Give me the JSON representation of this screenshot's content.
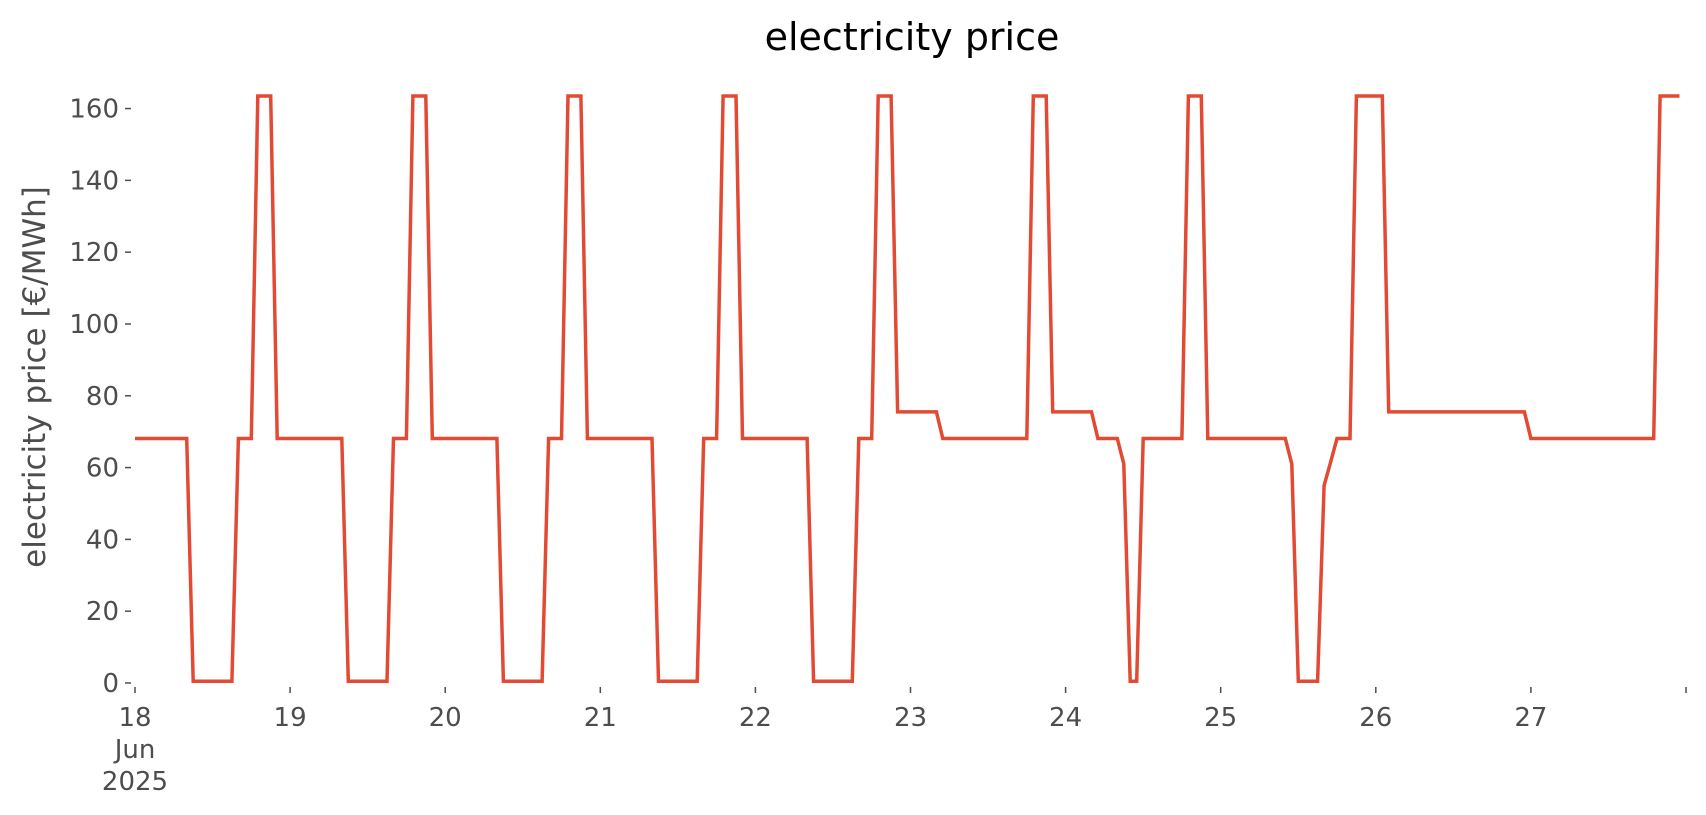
{
  "chart_data": {
    "type": "line",
    "title": "electricity price",
    "ylabel": "electricity price [€/MWh]",
    "xlabel": "",
    "x_start": "2025-06-18 00:00",
    "x_end": "2025-06-27 23:00",
    "x_unit": "hour",
    "xlim": [
      "2025-06-18 00:00",
      "2025-06-28 00:00"
    ],
    "ylim": [
      0,
      163.5
    ],
    "yticks": [
      0,
      20,
      40,
      60,
      80,
      100,
      120,
      140,
      160
    ],
    "xticks": [
      {
        "date": "2025-06-18",
        "labels": [
          "18",
          "Jun",
          "2025"
        ]
      },
      {
        "date": "2025-06-19",
        "labels": [
          "19"
        ]
      },
      {
        "date": "2025-06-20",
        "labels": [
          "20"
        ]
      },
      {
        "date": "2025-06-21",
        "labels": [
          "21"
        ]
      },
      {
        "date": "2025-06-22",
        "labels": [
          "22"
        ]
      },
      {
        "date": "2025-06-23",
        "labels": [
          "23"
        ]
      },
      {
        "date": "2025-06-24",
        "labels": [
          "24"
        ]
      },
      {
        "date": "2025-06-25",
        "labels": [
          "25"
        ]
      },
      {
        "date": "2025-06-26",
        "labels": [
          "26"
        ]
      },
      {
        "date": "2025-06-27",
        "labels": [
          "27"
        ]
      },
      {
        "date": "2025-06-28",
        "labels": [
          ""
        ]
      }
    ],
    "grid": false,
    "series": [
      {
        "color": "#e24a33",
        "values": [
          68.1,
          68.1,
          68.1,
          68.1,
          68.1,
          68.1,
          68.1,
          68.1,
          68.1,
          0.5,
          0.5,
          0.5,
          0.5,
          0.5,
          0.5,
          0.5,
          68.1,
          68.1,
          68.1,
          163.5,
          163.5,
          163.5,
          68.1,
          68.1,
          68.1,
          68.1,
          68.1,
          68.1,
          68.1,
          68.1,
          68.1,
          68.1,
          68.1,
          0.5,
          0.5,
          0.5,
          0.5,
          0.5,
          0.5,
          0.5,
          68.1,
          68.1,
          68.1,
          163.5,
          163.5,
          163.5,
          68.1,
          68.1,
          68.1,
          68.1,
          68.1,
          68.1,
          68.1,
          68.1,
          68.1,
          68.1,
          68.1,
          0.5,
          0.5,
          0.5,
          0.5,
          0.5,
          0.5,
          0.5,
          68.1,
          68.1,
          68.1,
          163.5,
          163.5,
          163.5,
          68.1,
          68.1,
          68.1,
          68.1,
          68.1,
          68.1,
          68.1,
          68.1,
          68.1,
          68.1,
          68.1,
          0.5,
          0.5,
          0.5,
          0.5,
          0.5,
          0.5,
          0.5,
          68.1,
          68.1,
          68.1,
          163.5,
          163.5,
          163.5,
          68.1,
          68.1,
          68.1,
          68.1,
          68.1,
          68.1,
          68.1,
          68.1,
          68.1,
          68.1,
          68.1,
          0.5,
          0.5,
          0.5,
          0.5,
          0.5,
          0.5,
          0.5,
          68.1,
          68.1,
          68.1,
          163.5,
          163.5,
          163.5,
          75.5,
          75.5,
          75.5,
          75.5,
          75.5,
          75.5,
          75.5,
          68.1,
          68.1,
          68.1,
          68.1,
          68.1,
          68.1,
          68.1,
          68.1,
          68.1,
          68.1,
          68.1,
          68.1,
          68.1,
          68.1,
          163.5,
          163.5,
          163.5,
          75.5,
          75.5,
          75.5,
          75.5,
          75.5,
          75.5,
          75.5,
          68.1,
          68.1,
          68.1,
          68.1,
          61.0,
          0.5,
          0.5,
          68.1,
          68.1,
          68.1,
          68.1,
          68.1,
          68.1,
          68.1,
          163.5,
          163.5,
          163.5,
          68.1,
          68.1,
          68.1,
          68.1,
          68.1,
          68.1,
          68.1,
          68.1,
          68.1,
          68.1,
          68.1,
          68.1,
          68.1,
          61.0,
          0.5,
          0.5,
          0.5,
          0.5,
          55.0,
          61.5,
          68.1,
          68.1,
          68.1,
          163.5,
          163.5,
          163.5,
          163.5,
          163.5,
          75.5,
          75.5,
          75.5,
          75.5,
          75.5,
          75.5,
          75.5,
          75.5,
          75.5,
          75.5,
          75.5,
          75.5,
          75.5,
          75.5,
          75.5,
          75.5,
          75.5,
          75.5,
          75.5,
          75.5,
          75.5,
          75.5,
          68.1,
          68.1,
          68.1,
          68.1,
          68.1,
          68.1,
          68.1,
          68.1,
          68.1,
          68.1,
          68.1,
          68.1,
          68.1,
          68.1,
          68.1,
          68.1,
          68.1,
          68.1,
          68.1,
          68.1,
          163.5,
          163.5,
          163.5,
          163.5
        ]
      }
    ]
  }
}
